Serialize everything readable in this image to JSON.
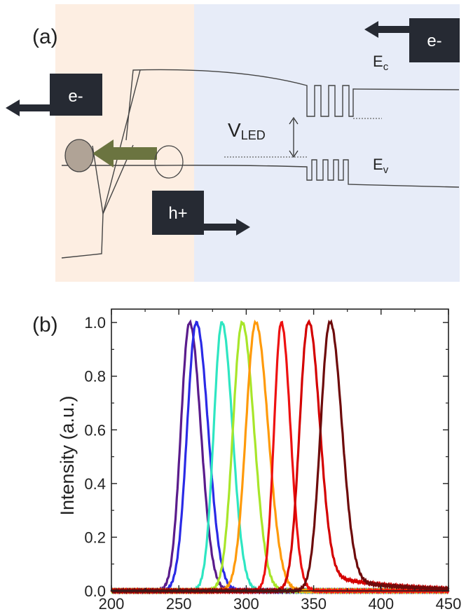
{
  "panel_a": {
    "label": "(a)",
    "electron_left": "e-",
    "electron_right": "e-",
    "hole": "h+",
    "ec_main": "E",
    "ec_sub": "c",
    "ev_main": "E",
    "ev_sub": "v",
    "vled_main": "V",
    "vled_sub": "LED",
    "colors": {
      "p_region": "#fdeee2",
      "n_region": "#e7ecf8",
      "label_box": "#262a33",
      "exciton_arrow": "#6b7440",
      "hole_fill": "#b0a396",
      "band_line": "#444444"
    }
  },
  "panel_b": {
    "label": "(b)",
    "chart_data": {
      "type": "line",
      "xlabel": "",
      "ylabel": "Intensity (a.u.)",
      "xlim": [
        200,
        450
      ],
      "ylim": [
        0,
        1.05
      ],
      "x_ticks": [
        "200",
        "250",
        "300",
        "350",
        "400",
        "450"
      ],
      "y_ticks": [
        "0.0",
        "0.2",
        "0.4",
        "0.6",
        "0.8",
        "1.0"
      ],
      "grid": false,
      "legend": "none",
      "series": [
        {
          "color": "#5a1c8c",
          "peak": 258,
          "fwhm": 17,
          "tail": 0
        },
        {
          "color": "#2a2ae6",
          "peak": 263,
          "fwhm": 18,
          "tail": 0
        },
        {
          "color": "#2ee6c2",
          "peak": 282,
          "fwhm": 16,
          "tail": 0
        },
        {
          "color": "#a8e62a",
          "peak": 297,
          "fwhm": 18,
          "tail": 0
        },
        {
          "color": "#ff9a0a",
          "peak": 307,
          "fwhm": 19,
          "tail": 0
        },
        {
          "color": "#ee1111",
          "peak": 326,
          "fwhm": 14,
          "tail": 0
        },
        {
          "color": "#d40000",
          "peak": 346,
          "fwhm": 17,
          "tail": 0.08
        },
        {
          "color": "#6e0b0b",
          "peak": 362,
          "fwhm": 18,
          "tail": 0.05
        }
      ]
    }
  }
}
